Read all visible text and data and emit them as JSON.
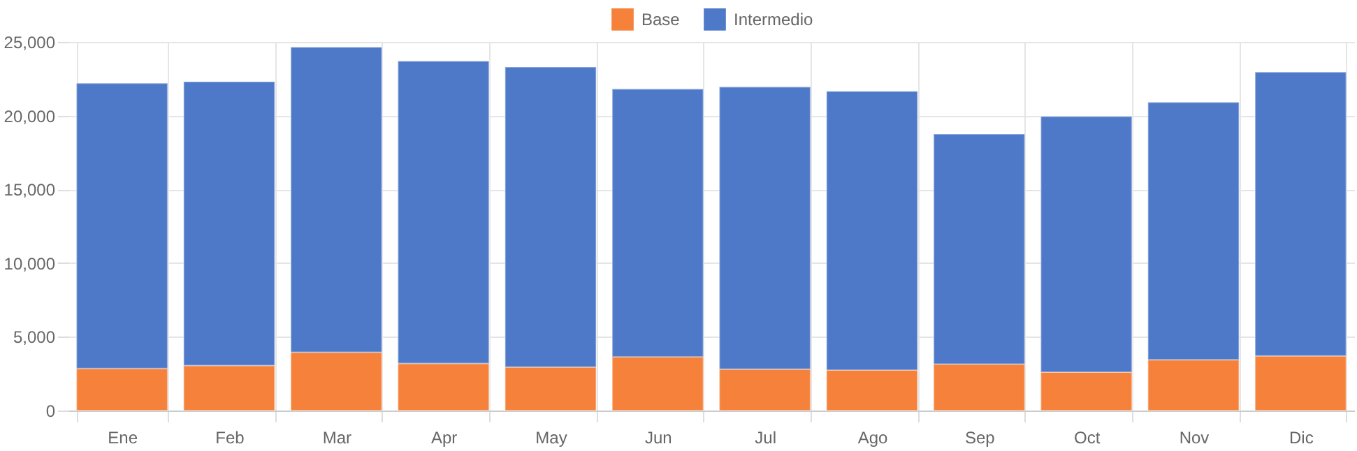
{
  "chart_data": {
    "type": "bar",
    "stacked": true,
    "legend": "top",
    "grid": true,
    "categories": [
      "Ene",
      "Feb",
      "Mar",
      "Apr",
      "May",
      "Jun",
      "Jul",
      "Ago",
      "Sep",
      "Oct",
      "Nov",
      "Dic"
    ],
    "series": [
      {
        "name": "Base",
        "color": "#f5813a",
        "values": [
          2850,
          3050,
          3950,
          3200,
          2950,
          3650,
          2800,
          2750,
          3150,
          2600,
          3450,
          3700
        ]
      },
      {
        "name": "Intermedio",
        "color": "#4e79c9",
        "values": [
          19350,
          19250,
          20700,
          20500,
          20350,
          18150,
          19150,
          18900,
          15600,
          17350,
          17450,
          19250
        ]
      }
    ],
    "ylim": [
      0,
      25000
    ],
    "yticks": [
      {
        "value": 0,
        "label": "0"
      },
      {
        "value": 5000,
        "label": "5,000"
      },
      {
        "value": 10000,
        "label": "10,000"
      },
      {
        "value": 15000,
        "label": "15,000"
      },
      {
        "value": 20000,
        "label": "20,000"
      },
      {
        "value": 25000,
        "label": "25,000"
      }
    ]
  }
}
